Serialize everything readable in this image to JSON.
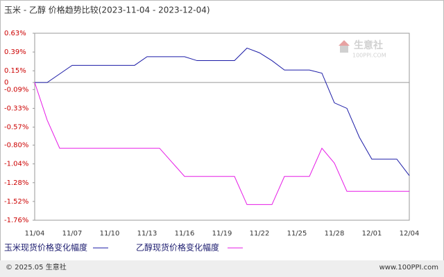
{
  "chart_data": {
    "type": "line",
    "title": "玉米 - 乙醇 价格趋势比较(2023-11-04 - 2023-12-04)",
    "categories": [
      "11/04",
      null,
      null,
      "11/07",
      null,
      null,
      "11/10",
      null,
      null,
      "11/13",
      null,
      null,
      "11/16",
      null,
      null,
      "11/19",
      null,
      null,
      "11/22",
      null,
      null,
      "11/25",
      null,
      null,
      "11/28",
      null,
      null,
      "12/01",
      null,
      null,
      "12/04"
    ],
    "series": [
      {
        "name": "玉米现货价格变化幅度",
        "color": "#1a1aa6",
        "values": [
          0,
          0,
          0.11,
          0.22,
          0.22,
          0.22,
          0.22,
          0.22,
          0.22,
          0.33,
          0.33,
          0.33,
          0.33,
          0.28,
          0.28,
          0.28,
          0.28,
          0.44,
          0.38,
          0.28,
          0.16,
          0.16,
          0.16,
          0.12,
          -0.26,
          -0.33,
          -0.7,
          -0.98,
          -0.98,
          -0.98,
          -1.19
        ]
      },
      {
        "name": "乙醇现货价格变化幅度",
        "color": "#e619e6",
        "values": [
          0,
          -0.48,
          -0.84,
          -0.84,
          -0.84,
          -0.84,
          -0.84,
          -0.84,
          -0.84,
          -0.84,
          -0.84,
          -1.02,
          -1.2,
          -1.2,
          -1.2,
          -1.2,
          -1.2,
          -1.56,
          -1.56,
          -1.56,
          -1.2,
          -1.2,
          -1.2,
          -0.84,
          -1.03,
          -1.39,
          -1.39,
          -1.39,
          -1.39,
          -1.39,
          -1.39
        ]
      }
    ],
    "ylim": [
      -1.76,
      0.63
    ],
    "yticks": [
      {
        "value": 0.63,
        "label": "0.63%"
      },
      {
        "value": 0.39,
        "label": "0.39%"
      },
      {
        "value": 0.15,
        "label": "0.15%"
      },
      0,
      {
        "value": -0.09,
        "label": "-0.09%"
      },
      {
        "value": -0.33,
        "label": "-0.33%"
      },
      {
        "value": -0.57,
        "label": "-0.57%"
      },
      {
        "value": -0.8,
        "label": "-0.80%"
      },
      {
        "value": -1.04,
        "label": "-1.04%"
      },
      {
        "value": -1.28,
        "label": "-1.28%"
      },
      {
        "value": -1.52,
        "label": "-1.52%"
      },
      {
        "value": -1.76,
        "label": "-1.76%"
      }
    ],
    "watermark": {
      "name": "生意社",
      "site": "100PPI.COM"
    }
  },
  "footer": {
    "left": "© 2025.05 生意社",
    "right": "www.100PPI.com"
  }
}
